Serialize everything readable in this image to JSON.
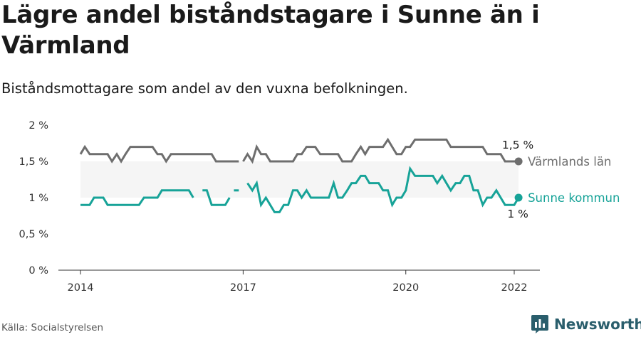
{
  "title": "Lägre andel biståndstagare i Sunne än i Värmland",
  "subtitle": "Biståndsmottagare som andel av den vuxna befolkningen.",
  "source": "Källa: Socialstyrelsen",
  "brand": {
    "name": "Newsworthy",
    "icon": "newsworthy-logo-icon",
    "color": "#2a5e6c"
  },
  "chart_data": {
    "type": "line",
    "ylim": [
      0,
      2
    ],
    "yticks": [
      0,
      0.5,
      1,
      1.5,
      2
    ],
    "ytick_labels": [
      "0 %",
      "0,5 %",
      "1 %",
      "1,5 %",
      "2 %"
    ],
    "xlim": [
      2014,
      2022.08
    ],
    "xticks": [
      2014,
      2017,
      2020,
      2022
    ],
    "xtick_labels": [
      "2014",
      "2017",
      "2020",
      "2022"
    ],
    "band": {
      "from": 1,
      "to": 1.5,
      "color": "#f5f5f5"
    },
    "grid": false,
    "series": [
      {
        "name": "Värmlands län",
        "color": "#6e6e6e",
        "end_label": "1,5 %",
        "segments": [
          [
            [
              2014.0,
              1.6
            ],
            [
              2014.08,
              1.7
            ],
            [
              2014.17,
              1.6
            ],
            [
              2014.25,
              1.6
            ],
            [
              2014.33,
              1.6
            ],
            [
              2014.42,
              1.6
            ],
            [
              2014.5,
              1.6
            ],
            [
              2014.58,
              1.5
            ],
            [
              2014.67,
              1.6
            ],
            [
              2014.75,
              1.5
            ],
            [
              2014.83,
              1.6
            ],
            [
              2014.92,
              1.7
            ],
            [
              2015.0,
              1.7
            ],
            [
              2015.08,
              1.7
            ],
            [
              2015.17,
              1.7
            ],
            [
              2015.25,
              1.7
            ],
            [
              2015.33,
              1.7
            ],
            [
              2015.42,
              1.6
            ],
            [
              2015.5,
              1.6
            ],
            [
              2015.58,
              1.5
            ],
            [
              2015.67,
              1.6
            ],
            [
              2015.75,
              1.6
            ],
            [
              2015.83,
              1.6
            ],
            [
              2015.92,
              1.6
            ],
            [
              2016.0,
              1.6
            ],
            [
              2016.08,
              1.6
            ],
            [
              2016.17,
              1.6
            ],
            [
              2016.25,
              1.6
            ],
            [
              2016.33,
              1.6
            ],
            [
              2016.42,
              1.6
            ],
            [
              2016.5,
              1.5
            ],
            [
              2016.58,
              1.5
            ],
            [
              2016.67,
              1.5
            ],
            [
              2016.75,
              1.5
            ],
            [
              2016.83,
              1.5
            ],
            [
              2016.92,
              1.5
            ]
          ],
          [
            [
              2017.0,
              1.5
            ],
            [
              2017.08,
              1.6
            ],
            [
              2017.17,
              1.5
            ],
            [
              2017.25,
              1.7
            ],
            [
              2017.33,
              1.6
            ],
            [
              2017.42,
              1.6
            ],
            [
              2017.5,
              1.5
            ],
            [
              2017.58,
              1.5
            ],
            [
              2017.67,
              1.5
            ],
            [
              2017.75,
              1.5
            ],
            [
              2017.83,
              1.5
            ],
            [
              2017.92,
              1.5
            ],
            [
              2018.0,
              1.6
            ],
            [
              2018.08,
              1.6
            ],
            [
              2018.17,
              1.7
            ],
            [
              2018.25,
              1.7
            ],
            [
              2018.33,
              1.7
            ],
            [
              2018.42,
              1.6
            ],
            [
              2018.5,
              1.6
            ],
            [
              2018.58,
              1.6
            ],
            [
              2018.67,
              1.6
            ],
            [
              2018.75,
              1.6
            ],
            [
              2018.83,
              1.5
            ],
            [
              2018.92,
              1.5
            ],
            [
              2019.0,
              1.5
            ],
            [
              2019.08,
              1.6
            ],
            [
              2019.17,
              1.7
            ],
            [
              2019.25,
              1.6
            ],
            [
              2019.33,
              1.7
            ],
            [
              2019.42,
              1.7
            ],
            [
              2019.5,
              1.7
            ],
            [
              2019.58,
              1.7
            ],
            [
              2019.67,
              1.8
            ],
            [
              2019.75,
              1.7
            ],
            [
              2019.83,
              1.6
            ],
            [
              2019.92,
              1.6
            ],
            [
              2020.0,
              1.7
            ],
            [
              2020.08,
              1.7
            ],
            [
              2020.17,
              1.8
            ],
            [
              2020.25,
              1.8
            ],
            [
              2020.33,
              1.8
            ],
            [
              2020.42,
              1.8
            ],
            [
              2020.5,
              1.8
            ],
            [
              2020.58,
              1.8
            ],
            [
              2020.67,
              1.8
            ],
            [
              2020.75,
              1.8
            ],
            [
              2020.83,
              1.7
            ],
            [
              2020.92,
              1.7
            ],
            [
              2021.0,
              1.7
            ],
            [
              2021.08,
              1.7
            ],
            [
              2021.17,
              1.7
            ],
            [
              2021.25,
              1.7
            ],
            [
              2021.33,
              1.7
            ],
            [
              2021.42,
              1.7
            ],
            [
              2021.5,
              1.6
            ],
            [
              2021.58,
              1.6
            ],
            [
              2021.67,
              1.6
            ],
            [
              2021.75,
              1.6
            ],
            [
              2021.83,
              1.5
            ],
            [
              2021.92,
              1.5
            ],
            [
              2022.0,
              1.5
            ],
            [
              2022.08,
              1.5
            ]
          ]
        ]
      },
      {
        "name": "Sunne kommun",
        "color": "#17a398",
        "end_label": "1 %",
        "segments": [
          [
            [
              2014.0,
              0.9
            ],
            [
              2014.08,
              0.9
            ],
            [
              2014.17,
              0.9
            ],
            [
              2014.25,
              1.0
            ],
            [
              2014.33,
              1.0
            ],
            [
              2014.42,
              1.0
            ],
            [
              2014.5,
              0.9
            ],
            [
              2014.58,
              0.9
            ],
            [
              2014.67,
              0.9
            ],
            [
              2014.75,
              0.9
            ],
            [
              2014.83,
              0.9
            ],
            [
              2014.92,
              0.9
            ],
            [
              2015.0,
              0.9
            ],
            [
              2015.08,
              0.9
            ],
            [
              2015.17,
              1.0
            ],
            [
              2015.25,
              1.0
            ],
            [
              2015.33,
              1.0
            ],
            [
              2015.42,
              1.0
            ],
            [
              2015.5,
              1.1
            ],
            [
              2015.58,
              1.1
            ],
            [
              2015.67,
              1.1
            ],
            [
              2015.75,
              1.1
            ],
            [
              2015.83,
              1.1
            ],
            [
              2015.92,
              1.1
            ],
            [
              2016.0,
              1.1
            ],
            [
              2016.08,
              1.0
            ]
          ],
          [
            [
              2016.25,
              1.1
            ],
            [
              2016.33,
              1.1
            ],
            [
              2016.42,
              0.9
            ],
            [
              2016.5,
              0.9
            ],
            [
              2016.58,
              0.9
            ],
            [
              2016.67,
              0.9
            ],
            [
              2016.75,
              1.0
            ]
          ],
          [
            [
              2016.83,
              1.1
            ],
            [
              2016.92,
              1.1
            ]
          ],
          [
            [
              2017.08,
              1.2
            ],
            [
              2017.17,
              1.1
            ],
            [
              2017.25,
              1.2
            ],
            [
              2017.33,
              0.9
            ],
            [
              2017.42,
              1.0
            ],
            [
              2017.5,
              0.9
            ],
            [
              2017.58,
              0.8
            ],
            [
              2017.67,
              0.8
            ],
            [
              2017.75,
              0.9
            ],
            [
              2017.83,
              0.9
            ],
            [
              2017.92,
              1.1
            ],
            [
              2018.0,
              1.1
            ],
            [
              2018.08,
              1.0
            ],
            [
              2018.17,
              1.1
            ],
            [
              2018.25,
              1.0
            ],
            [
              2018.33,
              1.0
            ],
            [
              2018.42,
              1.0
            ],
            [
              2018.5,
              1.0
            ],
            [
              2018.58,
              1.0
            ],
            [
              2018.67,
              1.2
            ],
            [
              2018.75,
              1.0
            ],
            [
              2018.83,
              1.0
            ],
            [
              2018.92,
              1.1
            ],
            [
              2019.0,
              1.2
            ],
            [
              2019.08,
              1.2
            ],
            [
              2019.17,
              1.3
            ],
            [
              2019.25,
              1.3
            ],
            [
              2019.33,
              1.2
            ],
            [
              2019.42,
              1.2
            ],
            [
              2019.5,
              1.2
            ],
            [
              2019.58,
              1.1
            ],
            [
              2019.67,
              1.1
            ],
            [
              2019.75,
              0.9
            ],
            [
              2019.83,
              1.0
            ],
            [
              2019.92,
              1.0
            ],
            [
              2020.0,
              1.1
            ],
            [
              2020.08,
              1.4
            ],
            [
              2020.17,
              1.3
            ],
            [
              2020.25,
              1.3
            ],
            [
              2020.33,
              1.3
            ],
            [
              2020.42,
              1.3
            ],
            [
              2020.5,
              1.3
            ],
            [
              2020.58,
              1.2
            ],
            [
              2020.67,
              1.3
            ],
            [
              2020.75,
              1.2
            ],
            [
              2020.83,
              1.1
            ],
            [
              2020.92,
              1.2
            ],
            [
              2021.0,
              1.2
            ],
            [
              2021.08,
              1.3
            ],
            [
              2021.17,
              1.3
            ],
            [
              2021.25,
              1.1
            ],
            [
              2021.33,
              1.1
            ],
            [
              2021.42,
              0.9
            ],
            [
              2021.5,
              1.0
            ],
            [
              2021.58,
              1.0
            ],
            [
              2021.67,
              1.1
            ],
            [
              2021.75,
              1.0
            ],
            [
              2021.83,
              0.9
            ],
            [
              2021.92,
              0.9
            ],
            [
              2022.0,
              0.9
            ],
            [
              2022.08,
              1.0
            ]
          ]
        ]
      }
    ]
  }
}
